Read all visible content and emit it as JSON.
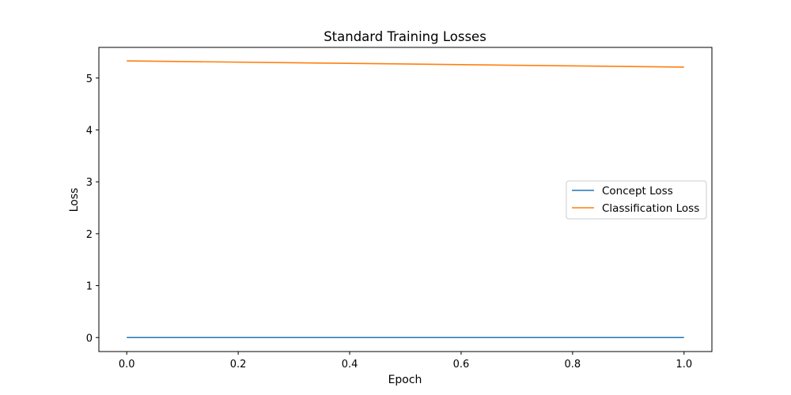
{
  "chart_data": {
    "type": "line",
    "title": "Standard Training Losses",
    "xlabel": "Epoch",
    "ylabel": "Loss",
    "xlim": [
      -0.05,
      1.05
    ],
    "ylim": [
      -0.27,
      5.59
    ],
    "xticks": [
      0.0,
      0.2,
      0.4,
      0.6,
      0.8,
      1.0
    ],
    "xtick_labels": [
      "0.0",
      "0.2",
      "0.4",
      "0.6",
      "0.8",
      "1.0"
    ],
    "yticks": [
      0,
      1,
      2,
      3,
      4,
      5
    ],
    "ytick_labels": [
      "0",
      "1",
      "2",
      "3",
      "4",
      "5"
    ],
    "grid": false,
    "legend_position": "center-right",
    "series": [
      {
        "name": "Concept Loss",
        "color": "#1f77b4",
        "x": [
          0,
          1
        ],
        "y": [
          0.0,
          0.0
        ]
      },
      {
        "name": "Classification Loss",
        "color": "#ff7f0e",
        "x": [
          0,
          1
        ],
        "y": [
          5.33,
          5.21
        ]
      }
    ]
  }
}
